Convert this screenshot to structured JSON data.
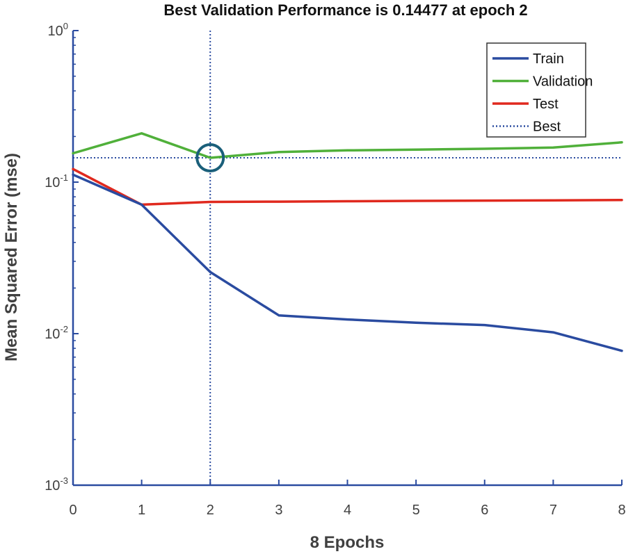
{
  "chart_data": {
    "type": "line",
    "title": "Best Validation Performance is 0.14477 at epoch 2",
    "xlabel": "8 Epochs",
    "ylabel": "Mean Squared Error  (mse)",
    "xlim": [
      0,
      8
    ],
    "ylim": [
      0.001,
      1
    ],
    "yscale": "log",
    "x_ticks": [
      0,
      1,
      2,
      3,
      4,
      5,
      6,
      7,
      8
    ],
    "x_tick_labels": [
      "0",
      "1",
      "2",
      "3",
      "4",
      "5",
      "6",
      "7",
      "8"
    ],
    "y_ticks": [
      {
        "value": 1,
        "base": "10",
        "exp": "0"
      },
      {
        "value": 0.1,
        "base": "10",
        "exp": "-1"
      },
      {
        "value": 0.01,
        "base": "10",
        "exp": "-2"
      },
      {
        "value": 0.001,
        "base": "10",
        "exp": "-3"
      }
    ],
    "grid": false,
    "legend_position": "top-right",
    "series": [
      {
        "name": "Train",
        "color": "#2a4ba0",
        "style": "solid",
        "x": [
          0,
          1,
          2,
          3,
          4,
          5,
          6,
          7,
          8
        ],
        "values": [
          0.112,
          0.071,
          0.0255,
          0.0132,
          0.0124,
          0.0118,
          0.0114,
          0.0102,
          0.0077
        ]
      },
      {
        "name": "Validation",
        "color": "#50b03a",
        "style": "solid",
        "x": [
          0,
          1,
          2,
          3,
          4,
          5,
          6,
          7,
          8
        ],
        "values": [
          0.155,
          0.21,
          0.14477,
          0.158,
          0.162,
          0.164,
          0.166,
          0.169,
          0.183
        ]
      },
      {
        "name": "Test",
        "color": "#e0291e",
        "style": "solid",
        "x": [
          0,
          1,
          2,
          3,
          4,
          5,
          6,
          7,
          8
        ],
        "values": [
          0.122,
          0.071,
          0.074,
          0.0743,
          0.0748,
          0.0752,
          0.0755,
          0.0758,
          0.0762
        ]
      }
    ],
    "best": {
      "name": "Best",
      "color": "#2a4ba0",
      "style": "dotted",
      "epoch": 2,
      "value": 0.14477,
      "marker_color": "#1a5f7a"
    }
  }
}
